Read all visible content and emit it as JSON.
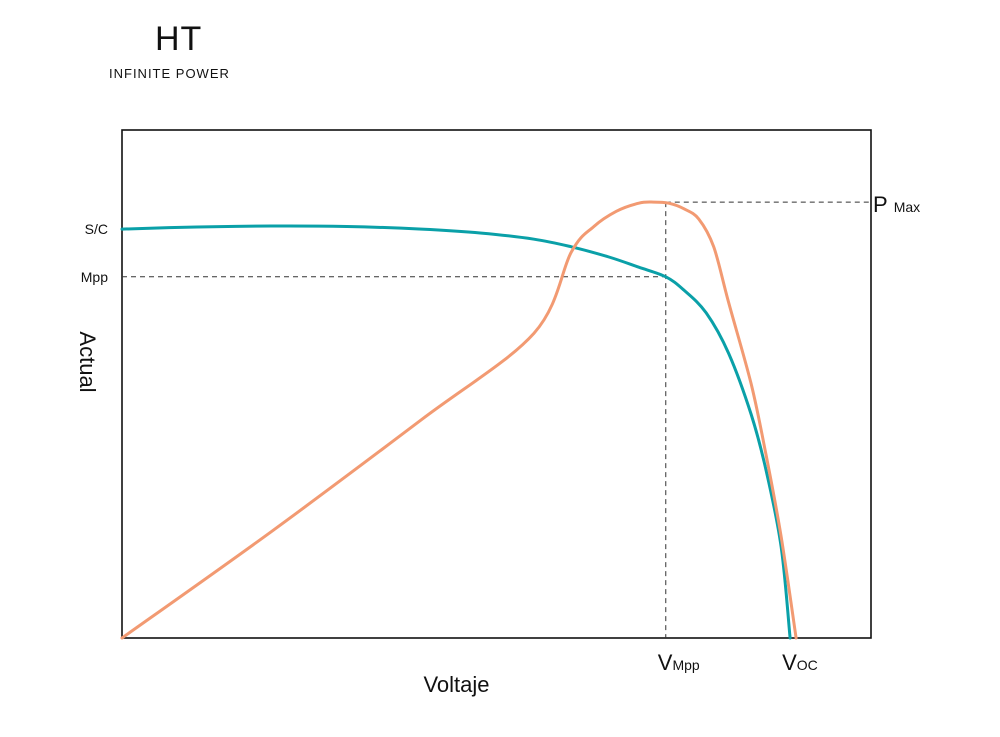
{
  "brand": {
    "logo_text": "HT",
    "tagline": "INFINITE POWER"
  },
  "colors": {
    "current_curve": "#0aa0a8",
    "power_curve": "#f29a72",
    "axis": "#111111",
    "guide": "#333333"
  },
  "chart_data": {
    "type": "line",
    "title": "",
    "xlabel": "Voltaje",
    "ylabel": "Actual",
    "xlim": [
      0,
      100
    ],
    "ylim": [
      0,
      100
    ],
    "grid": false,
    "y_markers": [
      {
        "id": "sc",
        "label": "S/C",
        "y": 80.5
      },
      {
        "id": "mpp",
        "label": "Mpp",
        "y": 71.1
      }
    ],
    "x_markers": [
      {
        "id": "vmpp",
        "main": "V",
        "sub": "Mpp",
        "x": 72.6
      },
      {
        "id": "voc",
        "main": "V",
        "sub": "OC",
        "x": 89.2
      }
    ],
    "pmax_label": {
      "main": "P",
      "sub": "Max",
      "y": 85.8
    },
    "series": [
      {
        "id": "current",
        "points": [
          [
            0,
            80.5
          ],
          [
            10,
            80.9
          ],
          [
            20,
            81.1
          ],
          [
            30,
            81.0
          ],
          [
            40,
            80.5
          ],
          [
            48,
            79.7
          ],
          [
            55,
            78.5
          ],
          [
            60,
            77.0
          ],
          [
            65,
            75.0
          ],
          [
            69,
            73.0
          ],
          [
            72.6,
            71.1
          ],
          [
            75,
            68.5
          ],
          [
            78,
            64.0
          ],
          [
            81,
            56.0
          ],
          [
            84,
            44.0
          ],
          [
            86,
            33.0
          ],
          [
            88,
            18.0
          ],
          [
            89.2,
            0
          ]
        ]
      },
      {
        "id": "power",
        "points": [
          [
            0,
            0
          ],
          [
            20,
            21.0
          ],
          [
            40,
            43.0
          ],
          [
            55,
            60.0
          ],
          [
            60,
            76.0
          ],
          [
            63,
            81.0
          ],
          [
            66,
            84.0
          ],
          [
            69,
            85.6
          ],
          [
            71,
            85.8
          ],
          [
            73,
            85.6
          ],
          [
            75,
            84.5
          ],
          [
            77,
            82.5
          ],
          [
            79,
            77.0
          ],
          [
            81,
            66.0
          ],
          [
            84,
            50.0
          ],
          [
            86,
            36.0
          ],
          [
            88,
            20.0
          ],
          [
            90,
            0
          ]
        ]
      }
    ]
  }
}
